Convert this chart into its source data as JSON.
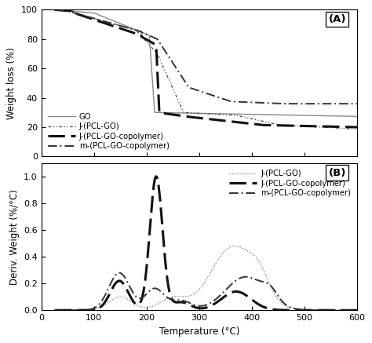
{
  "title_A": "(A)",
  "title_B": "(B)",
  "xlabel": "Temperature (°C)",
  "ylabel_A": "Weight loss (%)",
  "ylabel_B": "Deriv. Weight (%/°C)",
  "xlim": [
    0,
    600
  ],
  "ylim_A": [
    0,
    100
  ],
  "ylim_B": [
    0,
    1.1
  ],
  "yticks_A": [
    0,
    20,
    40,
    60,
    80,
    100
  ],
  "yticks_B": [
    0,
    0.2,
    0.4,
    0.6,
    0.8,
    1.0
  ],
  "xticks": [
    0,
    100,
    200,
    300,
    400,
    500,
    600
  ],
  "legend_A": [
    "GO",
    "J-(PCL-GO)",
    "J-(PCL-GO-copolymer)",
    "m-(PCL-GO-copolymer)"
  ],
  "legend_B": [
    "J-(PCL-GO)",
    "J-(PCL-GO-copolymer)",
    "m-(PCL-GO-copolymer)"
  ],
  "color_dark": "#111111",
  "color_mid": "#444444",
  "bg_color": "#ffffff"
}
